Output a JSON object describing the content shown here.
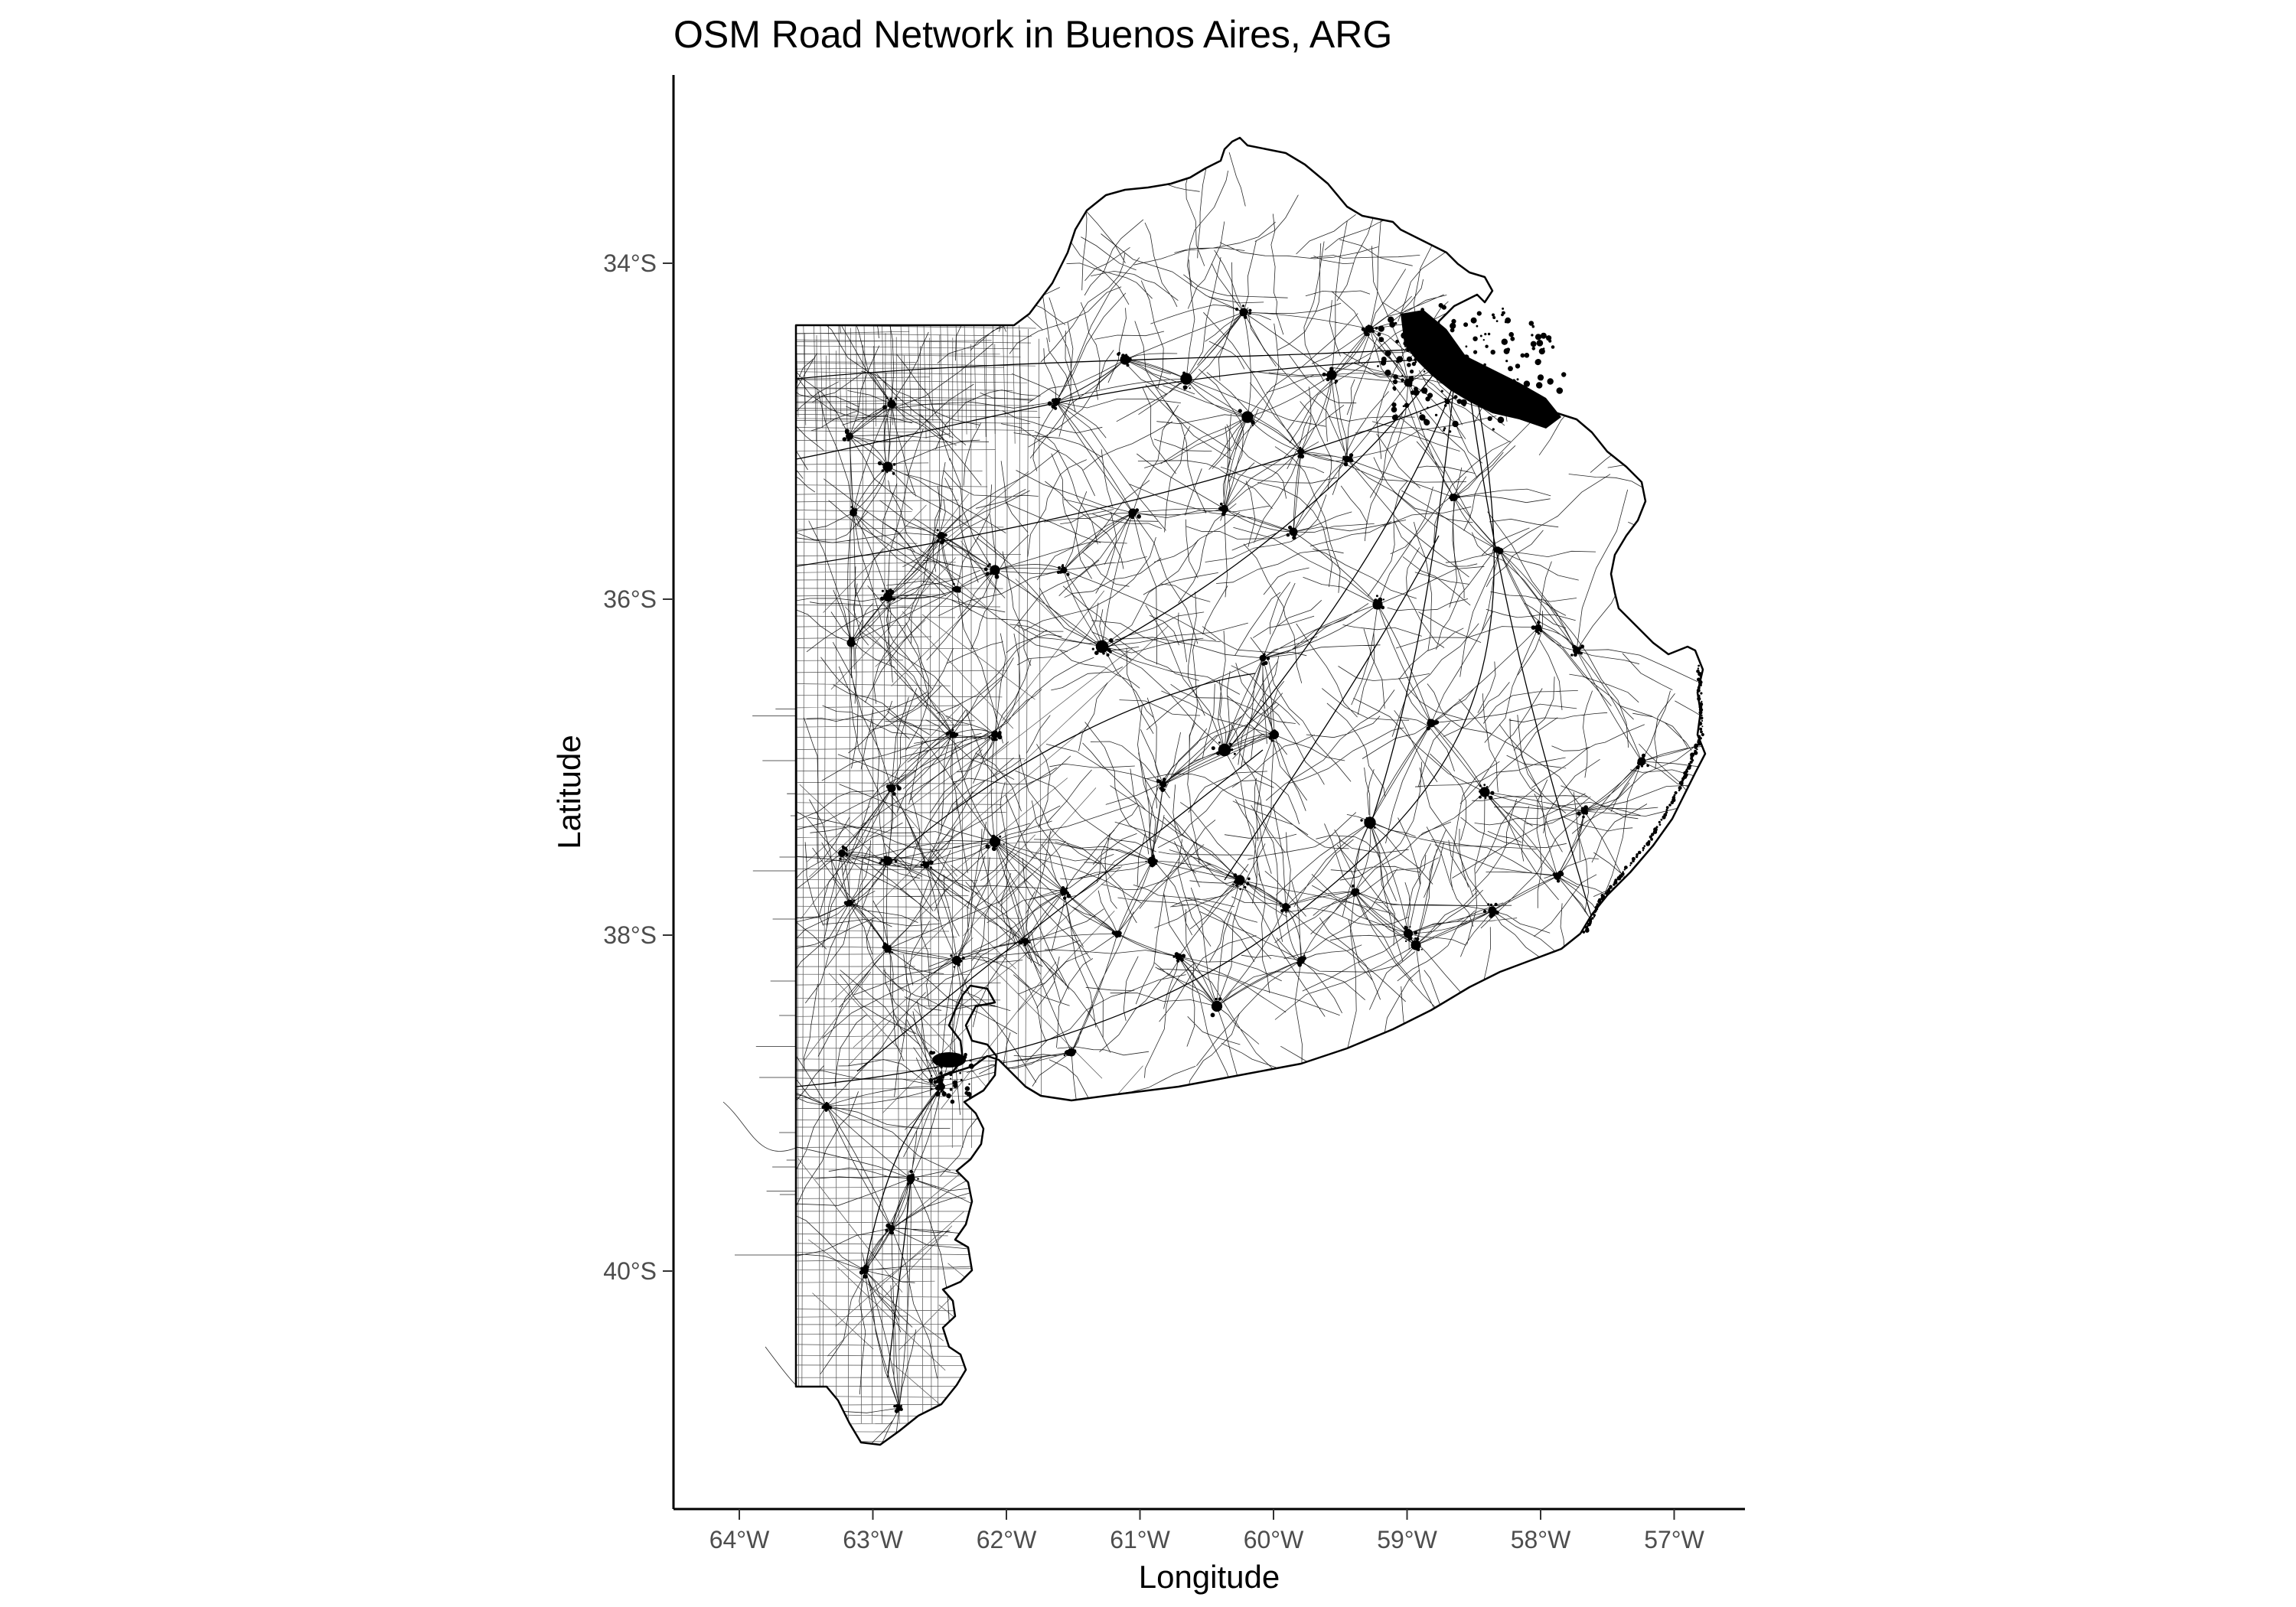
{
  "title": "OSM Road Network in Buenos Aires, ARG",
  "axes": {
    "xlabel": "Longitude",
    "ylabel": "Latitude",
    "x_ticks": [
      "64°W",
      "63°W",
      "62°W",
      "61°W",
      "60°W",
      "59°W",
      "58°W",
      "57°W"
    ],
    "y_ticks": [
      "34°S",
      "36°S",
      "38°S",
      "40°S"
    ]
  },
  "map": {
    "region": "Buenos Aires Province",
    "layer": "roads",
    "line_color": "#000000",
    "background_color": "#ffffff",
    "lon_range": [
      -64.35,
      -56.4
    ],
    "lat_range": [
      -41.4,
      -32.8
    ],
    "major_urban_area": "Greater Buenos Aires"
  }
}
